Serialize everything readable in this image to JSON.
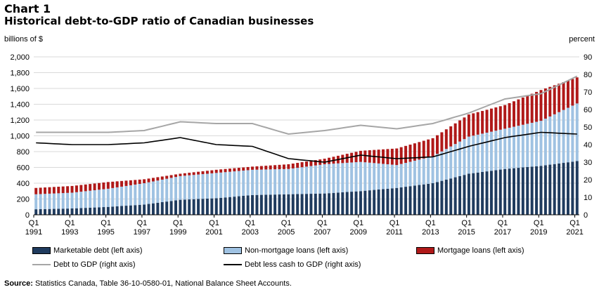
{
  "header": {
    "chart_number": "Chart 1",
    "title": "Historical debt-to-GDP ratio of Canadian businesses"
  },
  "colors": {
    "marketable": "#1f3b5e",
    "non_mortgage": "#9fc2e2",
    "mortgage": "#b01919",
    "debt_to_gdp": "#a6a6a6",
    "debt_less_cash": "#000000"
  },
  "chart_data": {
    "type": "bar",
    "stacked": true,
    "title": "Historical debt-to-GDP ratio of Canadian businesses",
    "ylabel_left": "billions of $",
    "ylabel_right": "percent",
    "ylim_left": [
      0,
      2000
    ],
    "ylim_right": [
      0,
      90
    ],
    "yticks_left": [
      "0",
      "200",
      "400",
      "600",
      "800",
      "1,000",
      "1,200",
      "1,400",
      "1,600",
      "1,800",
      "2,000"
    ],
    "yticks_right": [
      "0",
      "10",
      "20",
      "30",
      "40",
      "50",
      "60",
      "70",
      "80",
      "90"
    ],
    "x_labels": [
      {
        "top": "Q1",
        "bottom": "1991"
      },
      {
        "top": "Q1",
        "bottom": "1993"
      },
      {
        "top": "Q1",
        "bottom": "1995"
      },
      {
        "top": "Q1",
        "bottom": "1997"
      },
      {
        "top": "Q1",
        "bottom": "1999"
      },
      {
        "top": "Q1",
        "bottom": "2001"
      },
      {
        "top": "Q1",
        "bottom": "2003"
      },
      {
        "top": "Q1",
        "bottom": "2005"
      },
      {
        "top": "Q1",
        "bottom": "2007"
      },
      {
        "top": "Q1",
        "bottom": "2009"
      },
      {
        "top": "Q1",
        "bottom": "2011"
      },
      {
        "top": "Q1",
        "bottom": "2013"
      },
      {
        "top": "Q1",
        "bottom": "2015"
      },
      {
        "top": "Q1",
        "bottom": "2017"
      },
      {
        "top": "Q1",
        "bottom": "2019"
      },
      {
        "top": "Q1",
        "bottom": "2021"
      }
    ],
    "period_start": "1991 Q1",
    "period_end": "2021 Q1",
    "anchors": {
      "years": [
        1991,
        1993,
        1995,
        1997,
        1999,
        2001,
        2003,
        2005,
        2007,
        2009,
        2011,
        2013,
        2015,
        2017,
        2019,
        2021
      ],
      "marketable": [
        70,
        80,
        100,
        130,
        190,
        210,
        250,
        260,
        270,
        300,
        340,
        400,
        520,
        580,
        620,
        680
      ],
      "non_mortgage": [
        190,
        200,
        230,
        270,
        300,
        320,
        320,
        320,
        370,
        370,
        290,
        340,
        470,
        510,
        570,
        730
      ],
      "mortgage": [
        80,
        85,
        85,
        50,
        30,
        40,
        40,
        60,
        70,
        140,
        210,
        230,
        280,
        300,
        390,
        330
      ],
      "debt_to_gdp": [
        47,
        47,
        47,
        48,
        53,
        52,
        52,
        46,
        48,
        51,
        49,
        52,
        58,
        66,
        69,
        79
      ],
      "debt_less_cash": [
        41,
        40,
        40,
        41,
        44,
        40,
        39,
        32,
        30,
        34,
        32,
        33,
        39,
        44,
        47,
        46
      ]
    },
    "legend": {
      "placement": "bottom",
      "entries": [
        {
          "key": "marketable",
          "label": "Marketable debt (left axis)",
          "kind": "bar"
        },
        {
          "key": "non_mortgage",
          "label": "Non-mortgage loans (left axis)",
          "kind": "bar"
        },
        {
          "key": "mortgage",
          "label": "Mortgage loans (left axis)",
          "kind": "bar"
        },
        {
          "key": "debt_to_gdp",
          "label": "Debt to GDP (right axis)",
          "kind": "line"
        },
        {
          "key": "debt_less_cash",
          "label": "Debt less cash to GDP (right axis)",
          "kind": "line"
        }
      ]
    },
    "grid": true
  },
  "source": {
    "label": "Source:",
    "text": " Statistics Canada, Table 36-10-0580-01, National Balance Sheet Accounts."
  }
}
